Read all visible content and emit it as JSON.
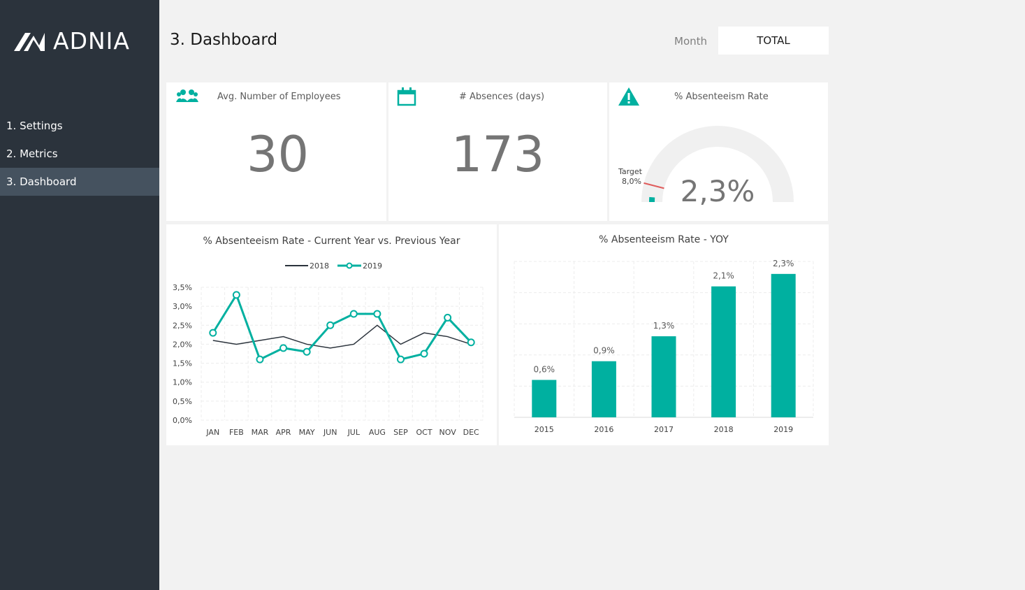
{
  "app": {
    "brand": "ADNIA"
  },
  "sidebar": {
    "items": [
      {
        "label": "1. Settings"
      },
      {
        "label": "2. Metrics"
      },
      {
        "label": "3. Dashboard"
      }
    ]
  },
  "header": {
    "title": "3. Dashboard",
    "month_label": "Month",
    "month_value": "TOTAL"
  },
  "kpis": {
    "employees": {
      "title": "Avg. Number of Employees",
      "value": "30",
      "icon": "people-icon"
    },
    "absences": {
      "title": "# Absences (days)",
      "value": "173",
      "icon": "calendar-icon"
    },
    "rate": {
      "title": "% Absenteeism Rate",
      "value": "2,3%",
      "icon": "warning-icon",
      "target_label": "Target",
      "target_value": "8,0%",
      "gauge_fraction": 0.023,
      "target_fraction": 0.08
    }
  },
  "colors": {
    "accent": "#00b0a0",
    "line_2018": "#2b333c",
    "target": "#e05c5c",
    "gauge_track": "#f0f0f0"
  },
  "chart_data": [
    {
      "type": "line",
      "title": "% Absenteeism Rate - Current Year vs. Previous Year",
      "categories": [
        "JAN",
        "FEB",
        "MAR",
        "APR",
        "MAY",
        "JUN",
        "JUL",
        "AUG",
        "SEP",
        "OCT",
        "NOV",
        "DEC"
      ],
      "series": [
        {
          "name": "2018",
          "values": [
            2.1,
            2.0,
            2.1,
            2.2,
            2.0,
            1.9,
            2.0,
            2.5,
            2.0,
            2.3,
            2.2,
            2.0
          ]
        },
        {
          "name": "2019",
          "values": [
            2.3,
            3.3,
            1.6,
            1.9,
            1.8,
            2.5,
            2.8,
            2.8,
            1.6,
            1.75,
            2.7,
            2.05
          ]
        }
      ],
      "yticks": [
        "0,0%",
        "0,5%",
        "1,0%",
        "1,5%",
        "2,0%",
        "2,5%",
        "3,0%",
        "3,5%"
      ],
      "ylim": [
        0,
        3.5
      ],
      "grid": true,
      "legend": "top"
    },
    {
      "type": "bar",
      "title": "% Absenteeism Rate - YOY",
      "categories": [
        "2015",
        "2016",
        "2017",
        "2018",
        "2019"
      ],
      "values": [
        0.6,
        0.9,
        1.3,
        2.1,
        2.3
      ],
      "labels": [
        "0,6%",
        "0,9%",
        "1,3%",
        "2,1%",
        "2,3%"
      ],
      "ylim": [
        0,
        2.5
      ],
      "grid": true
    }
  ]
}
